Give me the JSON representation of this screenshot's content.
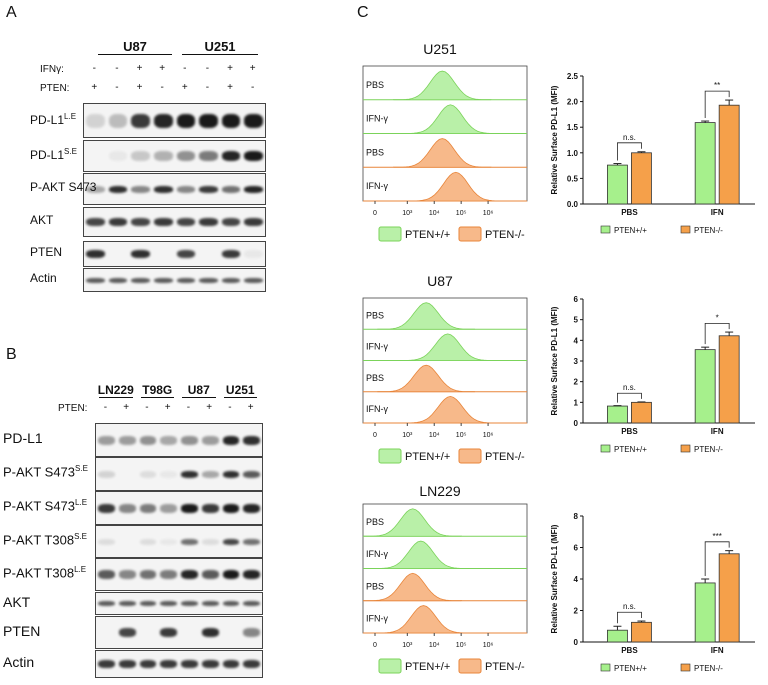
{
  "panels": {
    "a": "A",
    "b": "B",
    "c": "C"
  },
  "colors": {
    "green": "#b9f0a8",
    "green_edge": "#7bd35a",
    "orange": "#f7b98a",
    "orange_edge": "#e8853a",
    "bar_green": "#a6f08c",
    "bar_orange": "#f5a04a"
  },
  "panelA": {
    "groups": [
      "U87",
      "U251"
    ],
    "ifn_label": "IFNγ:",
    "pten_label": "PTEN:",
    "ifn_signs": [
      "-",
      "-",
      "+",
      "+",
      "-",
      "-",
      "+",
      "+"
    ],
    "pten_signs": [
      "+",
      "-",
      "+",
      "-",
      "+",
      "-",
      "+",
      "-"
    ],
    "rows": [
      {
        "name": "PD-L1",
        "sup": "L.E"
      },
      {
        "name": "PD-L1",
        "sup": "S.E"
      },
      {
        "name": "P-AKT S473",
        "sup": ""
      },
      {
        "name": "AKT",
        "sup": ""
      },
      {
        "name": "PTEN",
        "sup": ""
      },
      {
        "name": "Actin",
        "sup": ""
      }
    ]
  },
  "panelB": {
    "groups": [
      "LN229",
      "T98G",
      "U87",
      "U251"
    ],
    "pten_label": "PTEN:",
    "pten_signs": [
      "-",
      "+",
      "-",
      "+",
      "-",
      "+",
      "-",
      "+"
    ],
    "rows": [
      {
        "name": "PD-L1",
        "sup": ""
      },
      {
        "name": "P-AKT S473",
        "sup": "S.E"
      },
      {
        "name": "P-AKT S473",
        "sup": "L.E"
      },
      {
        "name": "P-AKT T308",
        "sup": "S.E"
      },
      {
        "name": "P-AKT T308",
        "sup": "L.E"
      },
      {
        "name": "AKT",
        "sup": ""
      },
      {
        "name": "PTEN",
        "sup": ""
      },
      {
        "name": "Actin",
        "sup": ""
      }
    ]
  },
  "flow": [
    {
      "title": "U251",
      "tracks": [
        "PBS",
        "IFN-γ",
        "PBS",
        "IFN-γ"
      ],
      "legend": [
        "PTEN+/+",
        "PTEN-/-"
      ],
      "ticks": [
        "0",
        "10³",
        "10⁴",
        "10⁵",
        "10⁶"
      ],
      "peaks": [
        4.3,
        4.6,
        4.3,
        4.8
      ]
    },
    {
      "title": "U87",
      "tracks": [
        "PBS",
        "IFN-γ",
        "PBS",
        "IFN-γ"
      ],
      "legend": [
        "PTEN+/+",
        "PTEN-/-"
      ],
      "ticks": [
        "0",
        "10³",
        "10⁴",
        "10⁵",
        "10⁶"
      ],
      "peaks": [
        3.7,
        4.5,
        3.7,
        4.6
      ]
    },
    {
      "title": "LN229",
      "tracks": [
        "PBS",
        "IFN-γ",
        "PBS",
        "IFN-γ"
      ],
      "legend": [
        "PTEN+/+",
        "PTEN-/-"
      ],
      "ticks": [
        "0",
        "10³",
        "10⁴",
        "10⁵",
        "10⁶"
      ],
      "peaks": [
        3.2,
        3.5,
        3.2,
        3.6
      ]
    }
  ],
  "chart_data": [
    {
      "type": "bar",
      "ylabel": "Relative Surface PD-L1 (MFI)",
      "categories": [
        "PBS",
        "IFN"
      ],
      "series": [
        {
          "name": "PTEN+/+",
          "values": [
            0.76,
            1.59
          ],
          "err": [
            0.03,
            0.03
          ]
        },
        {
          "name": "PTEN-/-",
          "values": [
            1.0,
            1.93
          ],
          "err": [
            0.02,
            0.1
          ]
        }
      ],
      "ylim": [
        0,
        2.5
      ],
      "yticks": [
        "0.0",
        "0.5",
        "1.0",
        "1.5",
        "2.0",
        "2.5"
      ],
      "tickvals": [
        0,
        0.5,
        1.0,
        1.5,
        2.0,
        2.5
      ],
      "annotations": [
        "n.s.",
        "**"
      ]
    },
    {
      "type": "bar",
      "ylabel": "Relative Surface PD-L1 (MFI)",
      "categories": [
        "PBS",
        "IFN"
      ],
      "series": [
        {
          "name": "PTEN+/+",
          "values": [
            0.82,
            3.55
          ],
          "err": [
            0.02,
            0.12
          ]
        },
        {
          "name": "PTEN-/-",
          "values": [
            1.0,
            4.22
          ],
          "err": [
            0.02,
            0.18
          ]
        }
      ],
      "ylim": [
        0,
        6
      ],
      "yticks": [
        "0",
        "1",
        "2",
        "3",
        "4",
        "5",
        "6"
      ],
      "tickvals": [
        0,
        1,
        2,
        3,
        4,
        5,
        6
      ],
      "annotations": [
        "n.s.",
        "*"
      ]
    },
    {
      "type": "bar",
      "ylabel": "Relative Surface PD-L1 (MFI)",
      "categories": [
        "PBS",
        "IFN"
      ],
      "series": [
        {
          "name": "PTEN+/+",
          "values": [
            0.75,
            3.75
          ],
          "err": [
            0.25,
            0.25
          ]
        },
        {
          "name": "PTEN-/-",
          "values": [
            1.25,
            5.6
          ],
          "err": [
            0.08,
            0.2
          ]
        }
      ],
      "ylim": [
        0,
        8
      ],
      "yticks": [
        "0",
        "2",
        "4",
        "6",
        "8"
      ],
      "tickvals": [
        0,
        2,
        4,
        6,
        8
      ],
      "annotations": [
        "n.s.",
        "***"
      ]
    }
  ]
}
